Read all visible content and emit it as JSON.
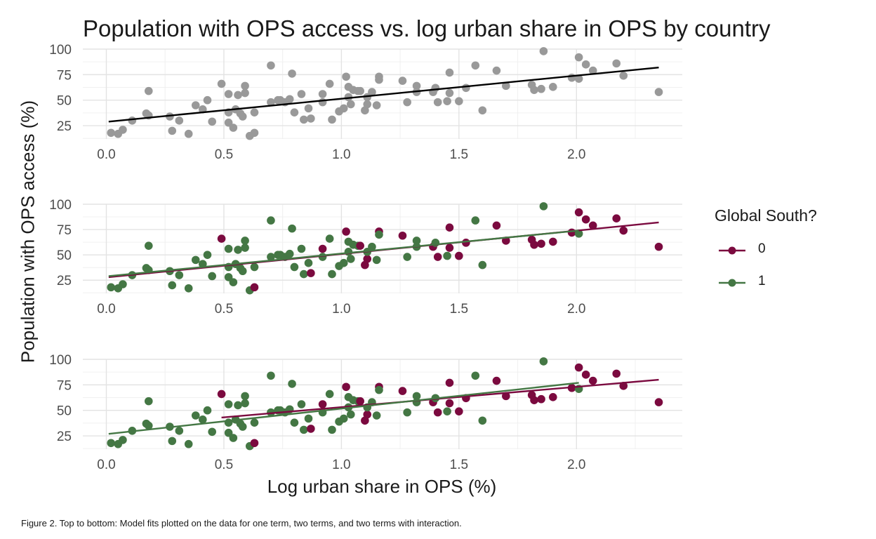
{
  "title": "Population with OPS access vs. log urban share in OPS by country",
  "caption": "Figure 2. Top to bottom: Model fits plotted on the data for one term, two terms, and two terms with interaction.",
  "legend": {
    "title": "Global South?",
    "items": [
      {
        "label": "0",
        "color": "#7b0a3f"
      },
      {
        "label": "1",
        "color": "#447744"
      }
    ]
  },
  "chart_data": {
    "type": "scatter",
    "xlabel": "Log urban share in OPS (%)",
    "ylabel": "Population with OPS access (%)",
    "xlim": [
      -0.1,
      2.45
    ],
    "ylim": [
      12,
      100
    ],
    "x_ticks": [
      "0.0",
      "0.5",
      "1.0",
      "1.5",
      "2.0"
    ],
    "x_tick_values": [
      0.0,
      0.5,
      1.0,
      1.5,
      2.0
    ],
    "y_ticks": [
      "25",
      "50",
      "75",
      "100"
    ],
    "y_tick_values": [
      25,
      50,
      75,
      100
    ],
    "grid": true,
    "colors": {
      "all": "#999999",
      "fit_all": "#000000",
      "g0": "#7b0a3f",
      "g1": "#447744"
    },
    "points": [
      [
        0.02,
        18,
        1
      ],
      [
        0.05,
        17,
        1
      ],
      [
        0.07,
        21,
        1
      ],
      [
        0.11,
        30,
        1
      ],
      [
        0.17,
        37,
        1
      ],
      [
        0.18,
        59,
        1
      ],
      [
        0.18,
        35,
        1
      ],
      [
        0.27,
        34,
        1
      ],
      [
        0.28,
        20,
        1
      ],
      [
        0.31,
        30,
        1
      ],
      [
        0.35,
        17,
        1
      ],
      [
        0.38,
        45,
        1
      ],
      [
        0.41,
        41,
        1
      ],
      [
        0.43,
        50,
        1
      ],
      [
        0.45,
        29,
        1
      ],
      [
        0.49,
        66,
        0
      ],
      [
        0.52,
        56,
        1
      ],
      [
        0.52,
        38,
        1
      ],
      [
        0.52,
        28,
        1
      ],
      [
        0.54,
        23,
        1
      ],
      [
        0.55,
        41,
        1
      ],
      [
        0.56,
        55,
        1
      ],
      [
        0.57,
        37,
        1
      ],
      [
        0.58,
        34,
        1
      ],
      [
        0.59,
        57,
        1
      ],
      [
        0.59,
        64,
        1
      ],
      [
        0.61,
        15,
        1
      ],
      [
        0.63,
        18,
        0
      ],
      [
        0.63,
        38,
        1
      ],
      [
        0.7,
        84,
        1
      ],
      [
        0.7,
        48,
        1
      ],
      [
        0.73,
        50,
        1
      ],
      [
        0.74,
        50,
        1
      ],
      [
        0.76,
        48,
        1
      ],
      [
        0.78,
        51,
        1
      ],
      [
        0.79,
        76,
        1
      ],
      [
        0.8,
        38,
        1
      ],
      [
        0.83,
        56,
        1
      ],
      [
        0.84,
        31,
        1
      ],
      [
        0.86,
        42,
        1
      ],
      [
        0.87,
        32,
        0
      ],
      [
        0.92,
        56,
        0
      ],
      [
        0.92,
        48,
        1
      ],
      [
        0.95,
        66,
        1
      ],
      [
        0.96,
        31,
        1
      ],
      [
        0.99,
        39,
        1
      ],
      [
        1.01,
        42,
        1
      ],
      [
        1.02,
        73,
        0
      ],
      [
        1.03,
        63,
        1
      ],
      [
        1.03,
        53,
        1
      ],
      [
        1.04,
        46,
        1
      ],
      [
        1.05,
        60,
        1
      ],
      [
        1.07,
        59,
        1
      ],
      [
        1.08,
        59,
        0
      ],
      [
        1.1,
        40,
        0
      ],
      [
        1.11,
        46,
        0
      ],
      [
        1.11,
        53,
        1
      ],
      [
        1.13,
        58,
        1
      ],
      [
        1.15,
        45,
        1
      ],
      [
        1.16,
        73,
        0
      ],
      [
        1.16,
        70,
        1
      ],
      [
        1.26,
        69,
        0
      ],
      [
        1.28,
        48,
        1
      ],
      [
        1.32,
        64,
        1
      ],
      [
        1.32,
        58,
        1
      ],
      [
        1.39,
        58,
        0
      ],
      [
        1.4,
        62,
        1
      ],
      [
        1.41,
        48,
        0
      ],
      [
        1.45,
        49,
        1
      ],
      [
        1.46,
        57,
        0
      ],
      [
        1.46,
        77,
        0
      ],
      [
        1.5,
        49,
        0
      ],
      [
        1.53,
        62,
        0
      ],
      [
        1.57,
        84,
        1
      ],
      [
        1.6,
        40,
        1
      ],
      [
        1.66,
        79,
        0
      ],
      [
        1.7,
        64,
        0
      ],
      [
        1.81,
        65,
        0
      ],
      [
        1.82,
        60,
        0
      ],
      [
        1.85,
        61,
        0
      ],
      [
        1.86,
        98,
        1
      ],
      [
        1.9,
        63,
        0
      ],
      [
        1.98,
        72,
        0
      ],
      [
        2.01,
        92,
        0
      ],
      [
        2.01,
        71,
        1
      ],
      [
        2.04,
        85,
        0
      ],
      [
        2.07,
        79,
        0
      ],
      [
        2.17,
        86,
        0
      ],
      [
        2.2,
        74,
        0
      ],
      [
        2.35,
        58,
        0
      ]
    ],
    "panels": [
      {
        "fits": [
          {
            "color_key": "fit_all",
            "x": [
              0.01,
              2.35
            ],
            "y": [
              29,
              82
            ]
          }
        ]
      },
      {
        "fits": [
          {
            "color_key": "g0",
            "x": [
              0.01,
              2.35
            ],
            "y": [
              28,
              82
            ]
          },
          {
            "color_key": "g1",
            "x": [
              0.01,
              2.01
            ],
            "y": [
              29,
              74
            ]
          }
        ]
      },
      {
        "fits": [
          {
            "color_key": "g0",
            "x": [
              0.49,
              2.35
            ],
            "y": [
              43,
              80
            ]
          },
          {
            "color_key": "g1",
            "x": [
              0.01,
              2.01
            ],
            "y": [
              27,
              77
            ]
          }
        ]
      }
    ]
  }
}
